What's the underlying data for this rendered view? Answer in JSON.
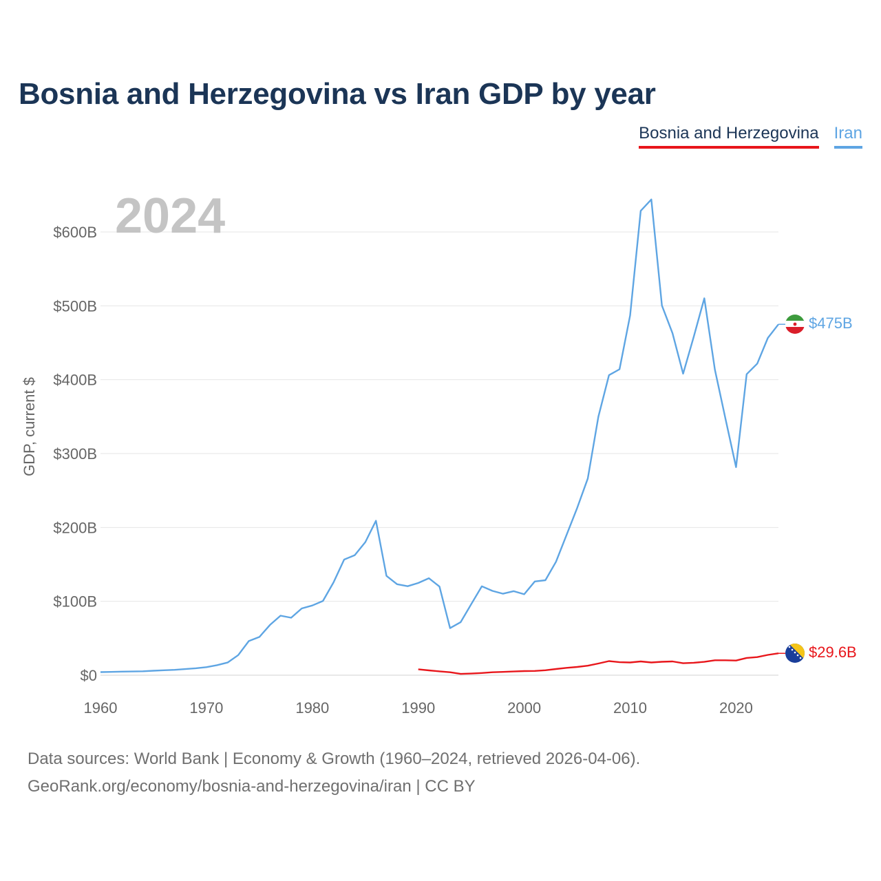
{
  "title": "Bosnia and Herzegovina vs Iran GDP by year",
  "legend": [
    {
      "label": "Bosnia and Herzegovina",
      "color": "#e8161b"
    },
    {
      "label": "Iran",
      "color": "#5ea5e3"
    }
  ],
  "year_label": "2024",
  "footer": {
    "line1": "Data sources: World Bank | Economy & Growth (1960–2024, retrieved 2026-04-06).",
    "line2": "GeoRank.org/economy/bosnia-and-herzegovina/iran | CC BY"
  },
  "chart_data": {
    "type": "line",
    "title": "Bosnia and Herzegovina vs Iran GDP by year",
    "xlabel": "",
    "ylabel": "GDP, current $",
    "xlim": [
      1960,
      2024
    ],
    "ylim": [
      0,
      600
    ],
    "y_unit": "billion USD",
    "y_ticks": [
      0,
      100,
      200,
      300,
      400,
      500,
      600
    ],
    "y_tick_labels": [
      "$0",
      "$100B",
      "$200B",
      "$300B",
      "$400B",
      "$500B",
      "$600B"
    ],
    "x_ticks": [
      1960,
      1970,
      1980,
      1990,
      2000,
      2010,
      2020
    ],
    "x_tick_labels": [
      "1960",
      "1970",
      "1980",
      "1990",
      "2000",
      "2010",
      "2020"
    ],
    "grid": true,
    "legend_position": "top-right",
    "series": [
      {
        "name": "Iran",
        "color": "#5ea5e3",
        "end_label": "$475B",
        "x": [
          1960,
          1961,
          1962,
          1963,
          1964,
          1965,
          1966,
          1967,
          1968,
          1969,
          1970,
          1971,
          1972,
          1973,
          1974,
          1975,
          1976,
          1977,
          1978,
          1979,
          1980,
          1981,
          1982,
          1983,
          1984,
          1985,
          1986,
          1987,
          1988,
          1989,
          1990,
          1991,
          1992,
          1993,
          1994,
          1995,
          1996,
          1997,
          1998,
          1999,
          2000,
          2001,
          2002,
          2003,
          2004,
          2005,
          2006,
          2007,
          2008,
          2009,
          2010,
          2011,
          2012,
          2013,
          2014,
          2015,
          2016,
          2017,
          2018,
          2019,
          2020,
          2021,
          2022,
          2023,
          2024
        ],
        "values": [
          4.2,
          4.5,
          4.8,
          5.0,
          5.3,
          6.1,
          6.7,
          7.3,
          8.3,
          9.4,
          10.9,
          13.6,
          17.1,
          27.2,
          46.2,
          51.8,
          68.1,
          80.6,
          77.8,
          90.4,
          94.4,
          100.5,
          125.7,
          156.5,
          162.5,
          180.2,
          209.1,
          134.4,
          123.2,
          120.5,
          124.8,
          131.3,
          120.0,
          63.7,
          71.8,
          96.2,
          120.4,
          114.1,
          110.3,
          113.8,
          109.6,
          126.9,
          128.6,
          153.5,
          190.0,
          226.5,
          266.3,
          350.0,
          406.1,
          414.1,
          487.1,
          628.6,
          644.0,
          500.4,
          462.9,
          408.2,
          458.0,
          510.2,
          413.4,
          347.3,
          281.6,
          407.4,
          421.8,
          456.5,
          475.0
        ]
      },
      {
        "name": "Bosnia and Herzegovina",
        "color": "#e8161b",
        "end_label": "$29.6B",
        "x": [
          1990,
          1991,
          1992,
          1993,
          1994,
          1995,
          1996,
          1997,
          1998,
          1999,
          2000,
          2001,
          2002,
          2003,
          2004,
          2005,
          2006,
          2007,
          2008,
          2009,
          2010,
          2011,
          2012,
          2013,
          2014,
          2015,
          2016,
          2017,
          2018,
          2019,
          2020,
          2021,
          2022,
          2023,
          2024
        ],
        "values": [
          8.0,
          6.5,
          5.2,
          4.0,
          1.8,
          2.2,
          3.0,
          4.0,
          4.5,
          5.0,
          5.6,
          5.8,
          6.7,
          8.4,
          10.0,
          11.2,
          12.9,
          15.8,
          19.1,
          17.6,
          17.2,
          18.6,
          17.2,
          18.2,
          18.6,
          16.2,
          16.9,
          18.1,
          20.2,
          20.2,
          19.8,
          23.4,
          24.5,
          27.5,
          29.6
        ]
      }
    ]
  }
}
